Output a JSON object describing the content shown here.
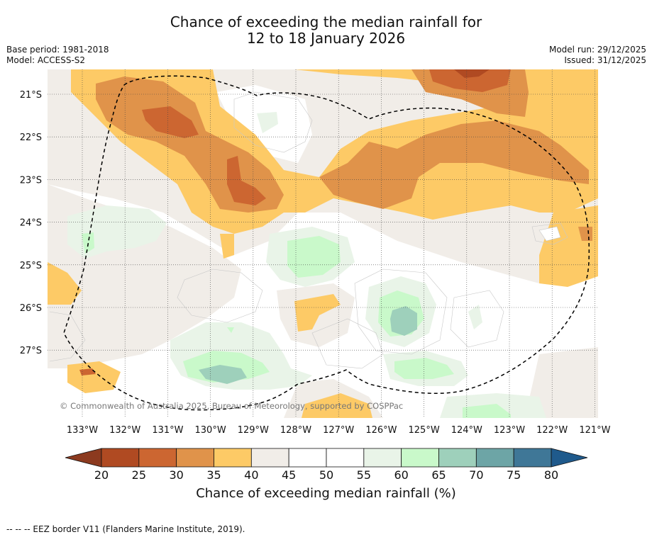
{
  "title": {
    "line1": "Chance of exceeding the median rainfall for",
    "line2": "12 to 18 January 2026"
  },
  "meta_left": {
    "base_period": "Base period: 1981-2018",
    "model": "Model: ACCESS-S2"
  },
  "meta_right": {
    "model_run": "Model run: 29/12/2025",
    "issued": "Issued: 31/12/2025"
  },
  "map": {
    "lat_labels": [
      "21°S",
      "22°S",
      "23°S",
      "24°S",
      "25°S",
      "26°S",
      "27°S"
    ],
    "lon_labels": [
      "133°W",
      "132°W",
      "131°W",
      "130°W",
      "129°W",
      "128°W",
      "127°W",
      "126°W",
      "125°W",
      "124°W",
      "123°W",
      "122°W",
      "121°W"
    ],
    "copyright": "© Commonwealth of Australia 2025, Bureau of Meteorology, supported by COSPPac"
  },
  "colorbar": {
    "ticks": [
      "20",
      "25",
      "30",
      "35",
      "40",
      "45",
      "50",
      "55",
      "60",
      "65",
      "70",
      "75",
      "80"
    ],
    "colors": [
      "#b04a22",
      "#cc6631",
      "#e0934a",
      "#fdca66",
      "#f1ede8",
      "#ffffff",
      "#ffffff",
      "#e9f4e8",
      "#c9f9ca",
      "#9ed0bb",
      "#6da5a6",
      "#3f7797"
    ],
    "under_color": "#8c3a1f",
    "over_color": "#1f5a8c",
    "label": "Chance of exceeding median rainfall (%)"
  },
  "footer": "--  --  -- EEZ border V11 (Flanders Marine Institute, 2019)."
}
